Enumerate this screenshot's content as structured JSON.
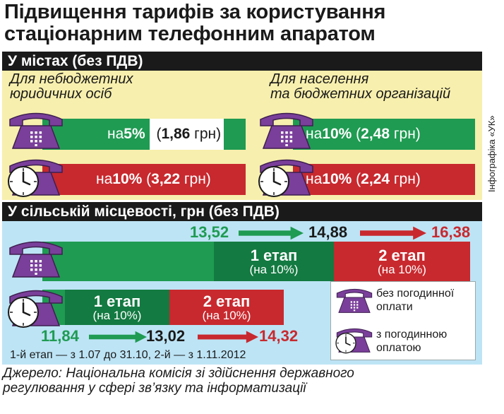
{
  "title": {
    "line1": "Підвищення тарифів за користування",
    "line2": "стаціонарним телефонним апаратом"
  },
  "credit": "Інфографіка «УК»",
  "cities": {
    "header": "У містах (без ПДВ)",
    "col_left": {
      "line1": "Для небюджетних",
      "line2": "юридичних осіб",
      "without_hourly": {
        "prefix": "на ",
        "pct": "5%",
        "paren_open": " (",
        "price": "1,86",
        "unit": " грн)"
      },
      "with_hourly": {
        "prefix": "на ",
        "pct": "10%",
        "paren_open": " (",
        "price": "3,22",
        "unit": " грн)"
      }
    },
    "col_right": {
      "line1": "Для населення",
      "line2": "та бюджетних організацій",
      "without_hourly": {
        "prefix": "на ",
        "pct": "10%",
        "paren_open": " (",
        "price": "2,48",
        "unit": " грн)"
      },
      "with_hourly": {
        "prefix": "на ",
        "pct": "10%",
        "paren_open": " (",
        "price": "2,24",
        "unit": " грн)"
      }
    }
  },
  "rural": {
    "header": "У сільській місцевості, грн (без ПДВ)",
    "without_hourly": {
      "start": "13,52",
      "after_stage1": "14,88",
      "after_stage2": "16,38",
      "stage1": {
        "title": "1 етап",
        "sub": "(на 10%)"
      },
      "stage2": {
        "title": "2 етап",
        "sub": "(на 10%)"
      }
    },
    "with_hourly": {
      "start": "11,84",
      "after_stage1": "13,02",
      "after_stage2": "14,32",
      "stage1": {
        "title": "1 етап",
        "sub": "(на 10%)"
      },
      "stage2": {
        "title": "2 етап",
        "sub": "(на 10%)"
      }
    },
    "legend": {
      "without_line1": "без погодинної",
      "without_line2": "оплати",
      "with_line1": "з погодинною",
      "with_line2": "оплатою"
    },
    "note": "1-й етап — з 1.07 до 31.10, 2-й — з 1.11.2012"
  },
  "source": {
    "line1": "Джерело: Національна комісія зі здійснення державного",
    "line2": "регулювання у сфері зв’язку та інформатизації"
  },
  "colors": {
    "green": "#1f9b52",
    "dark_green": "#137a41",
    "red": "#c8292e",
    "purple": "#7a3f9a",
    "yellow_panel": "#f7efad",
    "blue_panel": "#bde4f5"
  },
  "icons": {
    "phone": "purple-desk-phone-icon",
    "phone_clock": "purple-desk-phone-with-clock-icon",
    "arrow": "right-arrow-icon"
  }
}
